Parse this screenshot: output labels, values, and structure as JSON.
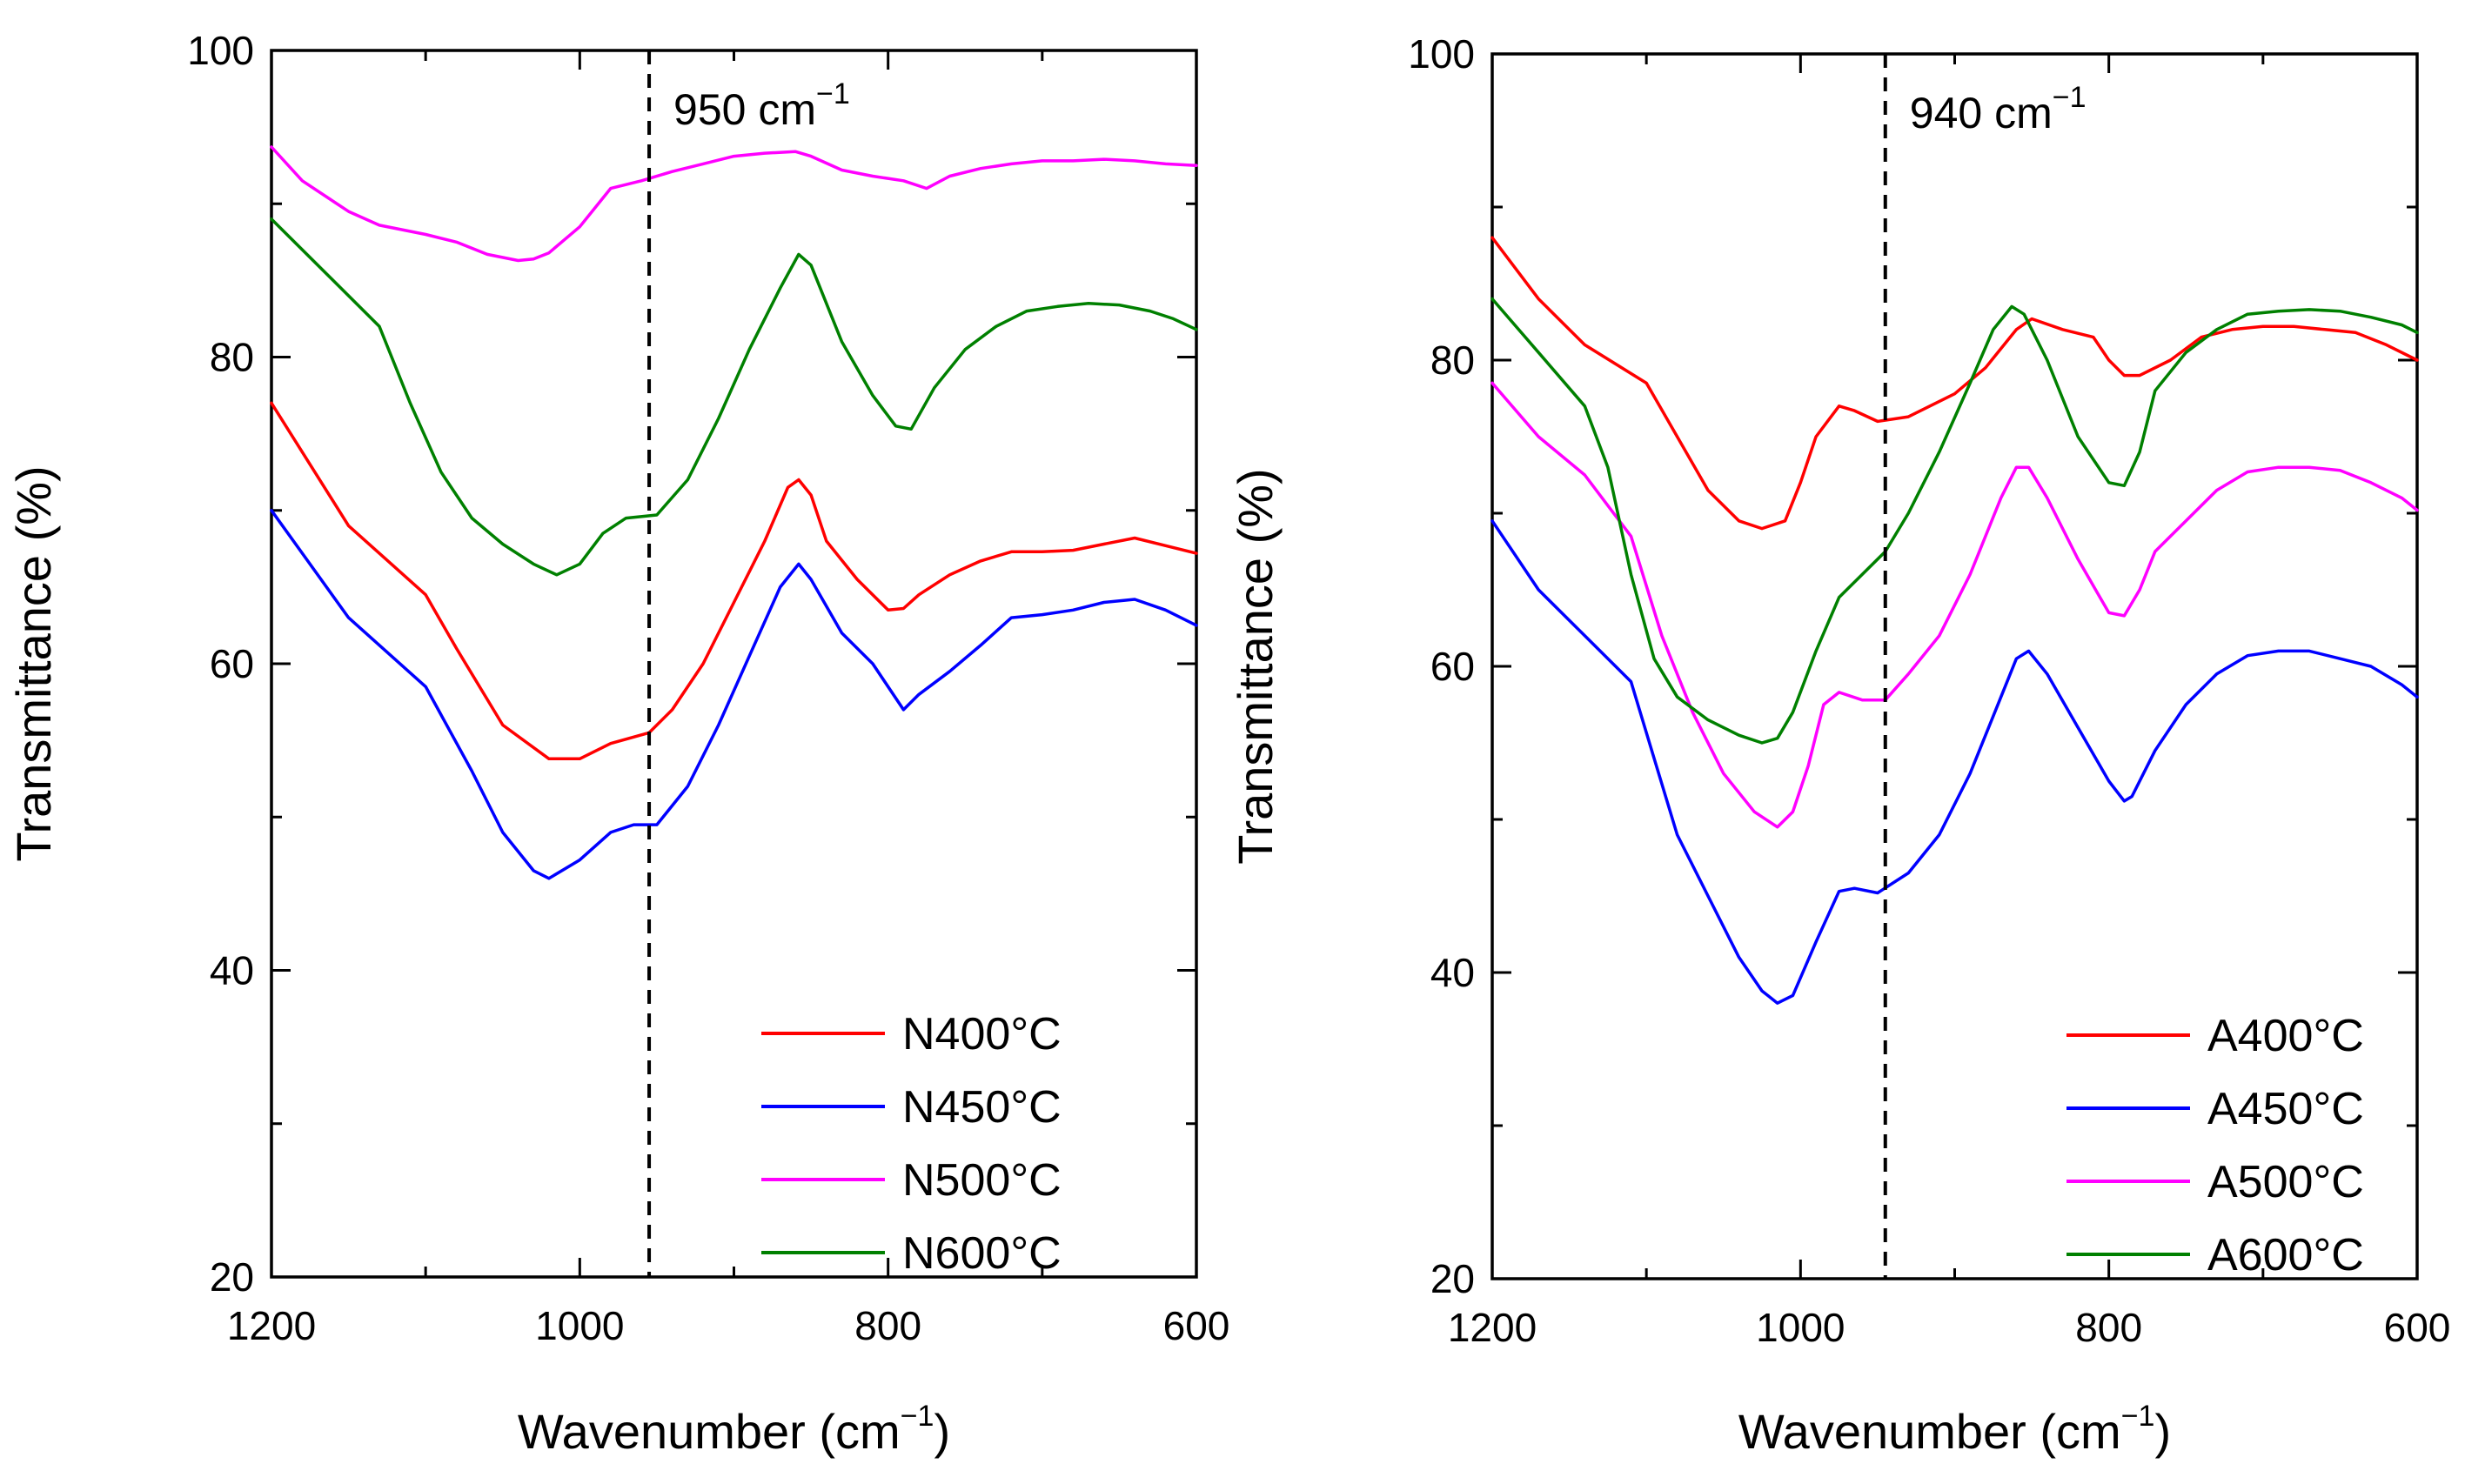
{
  "chart_data": [
    {
      "type": "line",
      "id": "N",
      "xlabel": "Wavenumber (cm",
      "xlabel_sup": "−1",
      "xlabel_end": ")",
      "ylabel": "Transmittance (%)",
      "xlim": [
        1200,
        600
      ],
      "ylim": [
        20,
        100
      ],
      "x_ticks": [
        1200,
        1000,
        800,
        600
      ],
      "y_ticks": [
        20,
        40,
        60,
        80,
        100
      ],
      "grid": false,
      "legend_position": "bottom-right",
      "marker": {
        "x": 955,
        "label": "950 cm",
        "label_sup": "−1"
      },
      "series": [
        {
          "name": "N400°C",
          "color": "#ff0000",
          "x": [
            1200,
            1150,
            1100,
            1080,
            1050,
            1020,
            1000,
            980,
            955,
            940,
            920,
            900,
            880,
            865,
            858,
            850,
            840,
            820,
            800,
            790,
            780,
            760,
            740,
            720,
            700,
            680,
            660,
            640,
            620,
            600
          ],
          "y": [
            77,
            69,
            64.5,
            61,
            56,
            53.8,
            53.8,
            54.8,
            55.5,
            57,
            60,
            64,
            68,
            71.5,
            72,
            71,
            68,
            65.5,
            63.5,
            63.6,
            64.5,
            65.8,
            66.7,
            67.3,
            67.3,
            67.4,
            67.8,
            68.2,
            67.7,
            67.2
          ]
        },
        {
          "name": "N450°C",
          "color": "#0000ff",
          "x": [
            1200,
            1150,
            1100,
            1070,
            1050,
            1030,
            1020,
            1000,
            980,
            965,
            950,
            930,
            910,
            890,
            870,
            858,
            850,
            830,
            810,
            790,
            780,
            760,
            740,
            720,
            700,
            680,
            660,
            640,
            620,
            600
          ],
          "y": [
            70,
            63,
            58.5,
            53,
            49,
            46.5,
            46,
            47.2,
            49,
            49.5,
            49.5,
            52,
            56,
            60.5,
            65,
            66.5,
            65.5,
            62,
            60,
            57,
            58,
            59.5,
            61.2,
            63,
            63.2,
            63.5,
            64,
            64.2,
            63.5,
            62.5
          ]
        },
        {
          "name": "N500°C",
          "color": "#ff00ff",
          "x": [
            1200,
            1180,
            1150,
            1130,
            1100,
            1080,
            1060,
            1040,
            1030,
            1020,
            1000,
            980,
            960,
            940,
            920,
            900,
            880,
            860,
            850,
            830,
            810,
            790,
            775,
            760,
            740,
            720,
            700,
            680,
            660,
            640,
            620,
            600
          ],
          "y": [
            93.7,
            91.5,
            89.5,
            88.6,
            88,
            87.5,
            86.7,
            86.3,
            86.4,
            86.8,
            88.5,
            91,
            91.5,
            92.1,
            92.6,
            93.1,
            93.3,
            93.4,
            93.1,
            92.2,
            91.8,
            91.5,
            91,
            91.8,
            92.3,
            92.6,
            92.8,
            92.8,
            92.9,
            92.8,
            92.6,
            92.5
          ]
        },
        {
          "name": "N600°C",
          "color": "#008000",
          "x": [
            1200,
            1160,
            1130,
            1110,
            1090,
            1070,
            1050,
            1030,
            1015,
            1000,
            985,
            970,
            950,
            930,
            910,
            890,
            870,
            858,
            850,
            830,
            810,
            795,
            785,
            770,
            750,
            730,
            710,
            690,
            670,
            650,
            630,
            615,
            600
          ],
          "y": [
            89,
            85,
            82,
            77,
            72.5,
            69.5,
            67.8,
            66.5,
            65.8,
            66.5,
            68.5,
            69.5,
            69.7,
            72,
            76,
            80.5,
            84.5,
            86.7,
            86,
            81,
            77.5,
            75.5,
            75.3,
            78,
            80.5,
            82,
            83,
            83.3,
            83.5,
            83.4,
            83,
            82.5,
            81.8
          ]
        }
      ]
    },
    {
      "type": "line",
      "id": "A",
      "xlabel": "Wavenumber (cm",
      "xlabel_sup": "−1",
      "xlabel_end": ")",
      "ylabel": "Transmittance (%)",
      "xlim": [
        1200,
        600
      ],
      "ylim": [
        20,
        100
      ],
      "x_ticks": [
        1200,
        1000,
        800,
        600
      ],
      "y_ticks": [
        20,
        40,
        60,
        80,
        100
      ],
      "grid": false,
      "legend_position": "bottom-right",
      "marker": {
        "x": 945,
        "label": "940 cm",
        "label_sup": "−1"
      },
      "series": [
        {
          "name": "A400°C",
          "color": "#ff0000",
          "x": [
            1200,
            1170,
            1140,
            1100,
            1080,
            1060,
            1040,
            1025,
            1010,
            1000,
            990,
            975,
            965,
            950,
            930,
            900,
            880,
            860,
            850,
            830,
            810,
            800,
            790,
            780,
            760,
            740,
            720,
            700,
            680,
            660,
            640,
            620,
            600
          ],
          "y": [
            88,
            84,
            81,
            78.5,
            75,
            71.5,
            69.5,
            69,
            69.5,
            72,
            75,
            77,
            76.7,
            76,
            76.3,
            77.8,
            79.5,
            82,
            82.7,
            82,
            81.5,
            80,
            79,
            79,
            80,
            81.5,
            82,
            82.2,
            82.2,
            82,
            81.8,
            81,
            80
          ]
        },
        {
          "name": "A450°C",
          "color": "#0000ff",
          "x": [
            1200,
            1170,
            1140,
            1110,
            1095,
            1080,
            1060,
            1040,
            1025,
            1015,
            1005,
            990,
            975,
            965,
            950,
            930,
            910,
            890,
            870,
            860,
            852,
            840,
            820,
            800,
            790,
            785,
            770,
            750,
            730,
            710,
            690,
            670,
            650,
            630,
            610,
            600
          ],
          "y": [
            69.5,
            65,
            62,
            59,
            54,
            49,
            45,
            41,
            38.8,
            38,
            38.5,
            42,
            45.3,
            45.5,
            45.2,
            46.5,
            49,
            53,
            58,
            60.5,
            61,
            59.5,
            56,
            52.5,
            51.2,
            51.5,
            54.5,
            57.5,
            59.5,
            60.7,
            61,
            61,
            60.5,
            60,
            58.8,
            58
          ]
        },
        {
          "name": "A500°C",
          "color": "#ff00ff",
          "x": [
            1200,
            1170,
            1140,
            1110,
            1090,
            1070,
            1050,
            1030,
            1015,
            1005,
            995,
            985,
            975,
            960,
            945,
            930,
            910,
            890,
            870,
            860,
            852,
            840,
            820,
            800,
            790,
            780,
            770,
            750,
            730,
            710,
            690,
            670,
            650,
            630,
            610,
            600
          ],
          "y": [
            78.5,
            75,
            72.5,
            68.5,
            62,
            57,
            53,
            50.5,
            49.5,
            50.5,
            53.5,
            57.5,
            58.3,
            57.8,
            57.8,
            59.5,
            62,
            66,
            71,
            73,
            73,
            71,
            67,
            63.5,
            63.3,
            65,
            67.5,
            69.5,
            71.5,
            72.7,
            73,
            73,
            72.8,
            72,
            71,
            70.2
          ]
        },
        {
          "name": "A600°C",
          "color": "#008000",
          "x": [
            1200,
            1170,
            1140,
            1125,
            1110,
            1095,
            1080,
            1060,
            1040,
            1025,
            1015,
            1005,
            990,
            975,
            960,
            945,
            930,
            910,
            890,
            875,
            863,
            855,
            840,
            820,
            800,
            790,
            780,
            770,
            750,
            730,
            710,
            690,
            670,
            650,
            630,
            610,
            600
          ],
          "y": [
            84,
            80.5,
            77,
            73,
            66,
            60.5,
            58,
            56.5,
            55.5,
            55,
            55.3,
            57,
            61,
            64.5,
            66,
            67.5,
            70,
            74,
            78.5,
            82,
            83.5,
            83,
            80,
            75,
            72,
            71.8,
            74,
            78,
            80.5,
            82,
            83,
            83.2,
            83.3,
            83.2,
            82.8,
            82.3,
            81.8
          ]
        }
      ]
    }
  ]
}
